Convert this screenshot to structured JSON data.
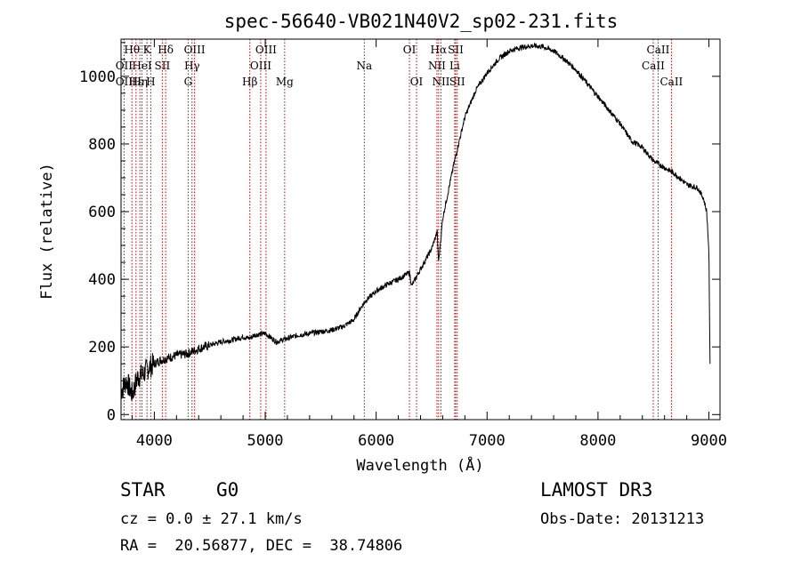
{
  "chart_data": {
    "type": "line",
    "title": "spec-56640-VB021N40V2_sp02-231.fits",
    "xlabel": "Wavelength (Å)",
    "ylabel": "Flux (relative)",
    "xlim": [
      3700,
      9100
    ],
    "ylim": [
      -15,
      1110
    ],
    "xticks": [
      4000,
      5000,
      6000,
      7000,
      8000,
      9000
    ],
    "yticks": [
      0,
      200,
      400,
      600,
      800,
      1000
    ],
    "grid": false,
    "line_color": "#000000",
    "marker_color": "#cc0000",
    "series": [
      {
        "name": "flux",
        "x": [
          3700,
          3750,
          3800,
          3850,
          3900,
          3950,
          4000,
          4050,
          4100,
          4200,
          4300,
          4400,
          4500,
          4600,
          4700,
          4800,
          4860,
          4900,
          5000,
          5100,
          5200,
          5300,
          5400,
          5500,
          5600,
          5700,
          5800,
          5850,
          5900,
          6000,
          6100,
          6200,
          6300,
          6320,
          6400,
          6500,
          6550,
          6563,
          6600,
          6700,
          6800,
          6900,
          7000,
          7100,
          7200,
          7300,
          7400,
          7500,
          7600,
          7700,
          7800,
          7900,
          8000,
          8100,
          8200,
          8300,
          8400,
          8500,
          8600,
          8700,
          8800,
          8900,
          8950,
          8980,
          9000,
          9010
        ],
        "y": [
          70,
          100,
          60,
          110,
          120,
          140,
          150,
          160,
          165,
          175,
          180,
          195,
          205,
          215,
          220,
          230,
          225,
          235,
          240,
          215,
          225,
          235,
          240,
          245,
          250,
          260,
          280,
          310,
          335,
          365,
          385,
          400,
          420,
          380,
          430,
          490,
          540,
          450,
          580,
          740,
          880,
          960,
          1010,
          1050,
          1075,
          1085,
          1090,
          1088,
          1075,
          1050,
          1020,
          980,
          940,
          900,
          860,
          810,
          790,
          750,
          730,
          710,
          680,
          670,
          640,
          600,
          480,
          150
        ]
      }
    ],
    "lines_row1": [
      {
        "label": "Hθ",
        "x": 3798
      },
      {
        "label": "K",
        "x": 3934
      },
      {
        "label": "Hδ",
        "x": 4102
      },
      {
        "label": "OIII",
        "x": 4363
      },
      {
        "label": "OIII",
        "x": 5007
      },
      {
        "label": "OI",
        "x": 6300
      },
      {
        "label": "Hα",
        "x": 6563
      },
      {
        "label": "SII",
        "x": 6717
      },
      {
        "label": "CaII",
        "x": 8542
      }
    ],
    "lines_row2": [
      {
        "label": "OII",
        "x": 3727
      },
      {
        "label": "HeI",
        "x": 3889
      },
      {
        "label": "SII",
        "x": 4072
      },
      {
        "label": "Hγ",
        "x": 4340
      },
      {
        "label": "OIII",
        "x": 4959
      },
      {
        "label": "Na",
        "x": 5893
      },
      {
        "label": "NII",
        "x": 6548
      },
      {
        "label": "Li",
        "x": 6708
      },
      {
        "label": "CaII",
        "x": 8498
      }
    ],
    "lines_row3": [
      {
        "label": "OII",
        "x": 3727
      },
      {
        "label": "Hε",
        "x": 3835
      },
      {
        "label": "Hη",
        "x": 3870
      },
      {
        "label": "H",
        "x": 3968
      },
      {
        "label": "G",
        "x": 4305
      },
      {
        "label": "Hβ",
        "x": 4861
      },
      {
        "label": "Mg",
        "x": 5175
      },
      {
        "label": "OI",
        "x": 6364
      },
      {
        "label": "NII",
        "x": 6584
      },
      {
        "label": "SII",
        "x": 6731
      },
      {
        "label": "CaII",
        "x": 8662
      }
    ],
    "marker_positions": [
      3727,
      3798,
      3835,
      3870,
      3889,
      3934,
      3968,
      4072,
      4102,
      4305,
      4340,
      4363,
      4861,
      4959,
      5007,
      5175,
      5893,
      6300,
      6364,
      6548,
      6563,
      6584,
      6708,
      6717,
      6731,
      8498,
      8542,
      8662
    ]
  },
  "info": {
    "class_label": "STAR",
    "subclass": "G0",
    "survey": "LAMOST DR3",
    "cz": "cz = 0.0 ± 27.1 km/s",
    "obs_date": "Obs-Date: 20131213",
    "coords": "RA =  20.56877, DEC =  38.74806"
  }
}
